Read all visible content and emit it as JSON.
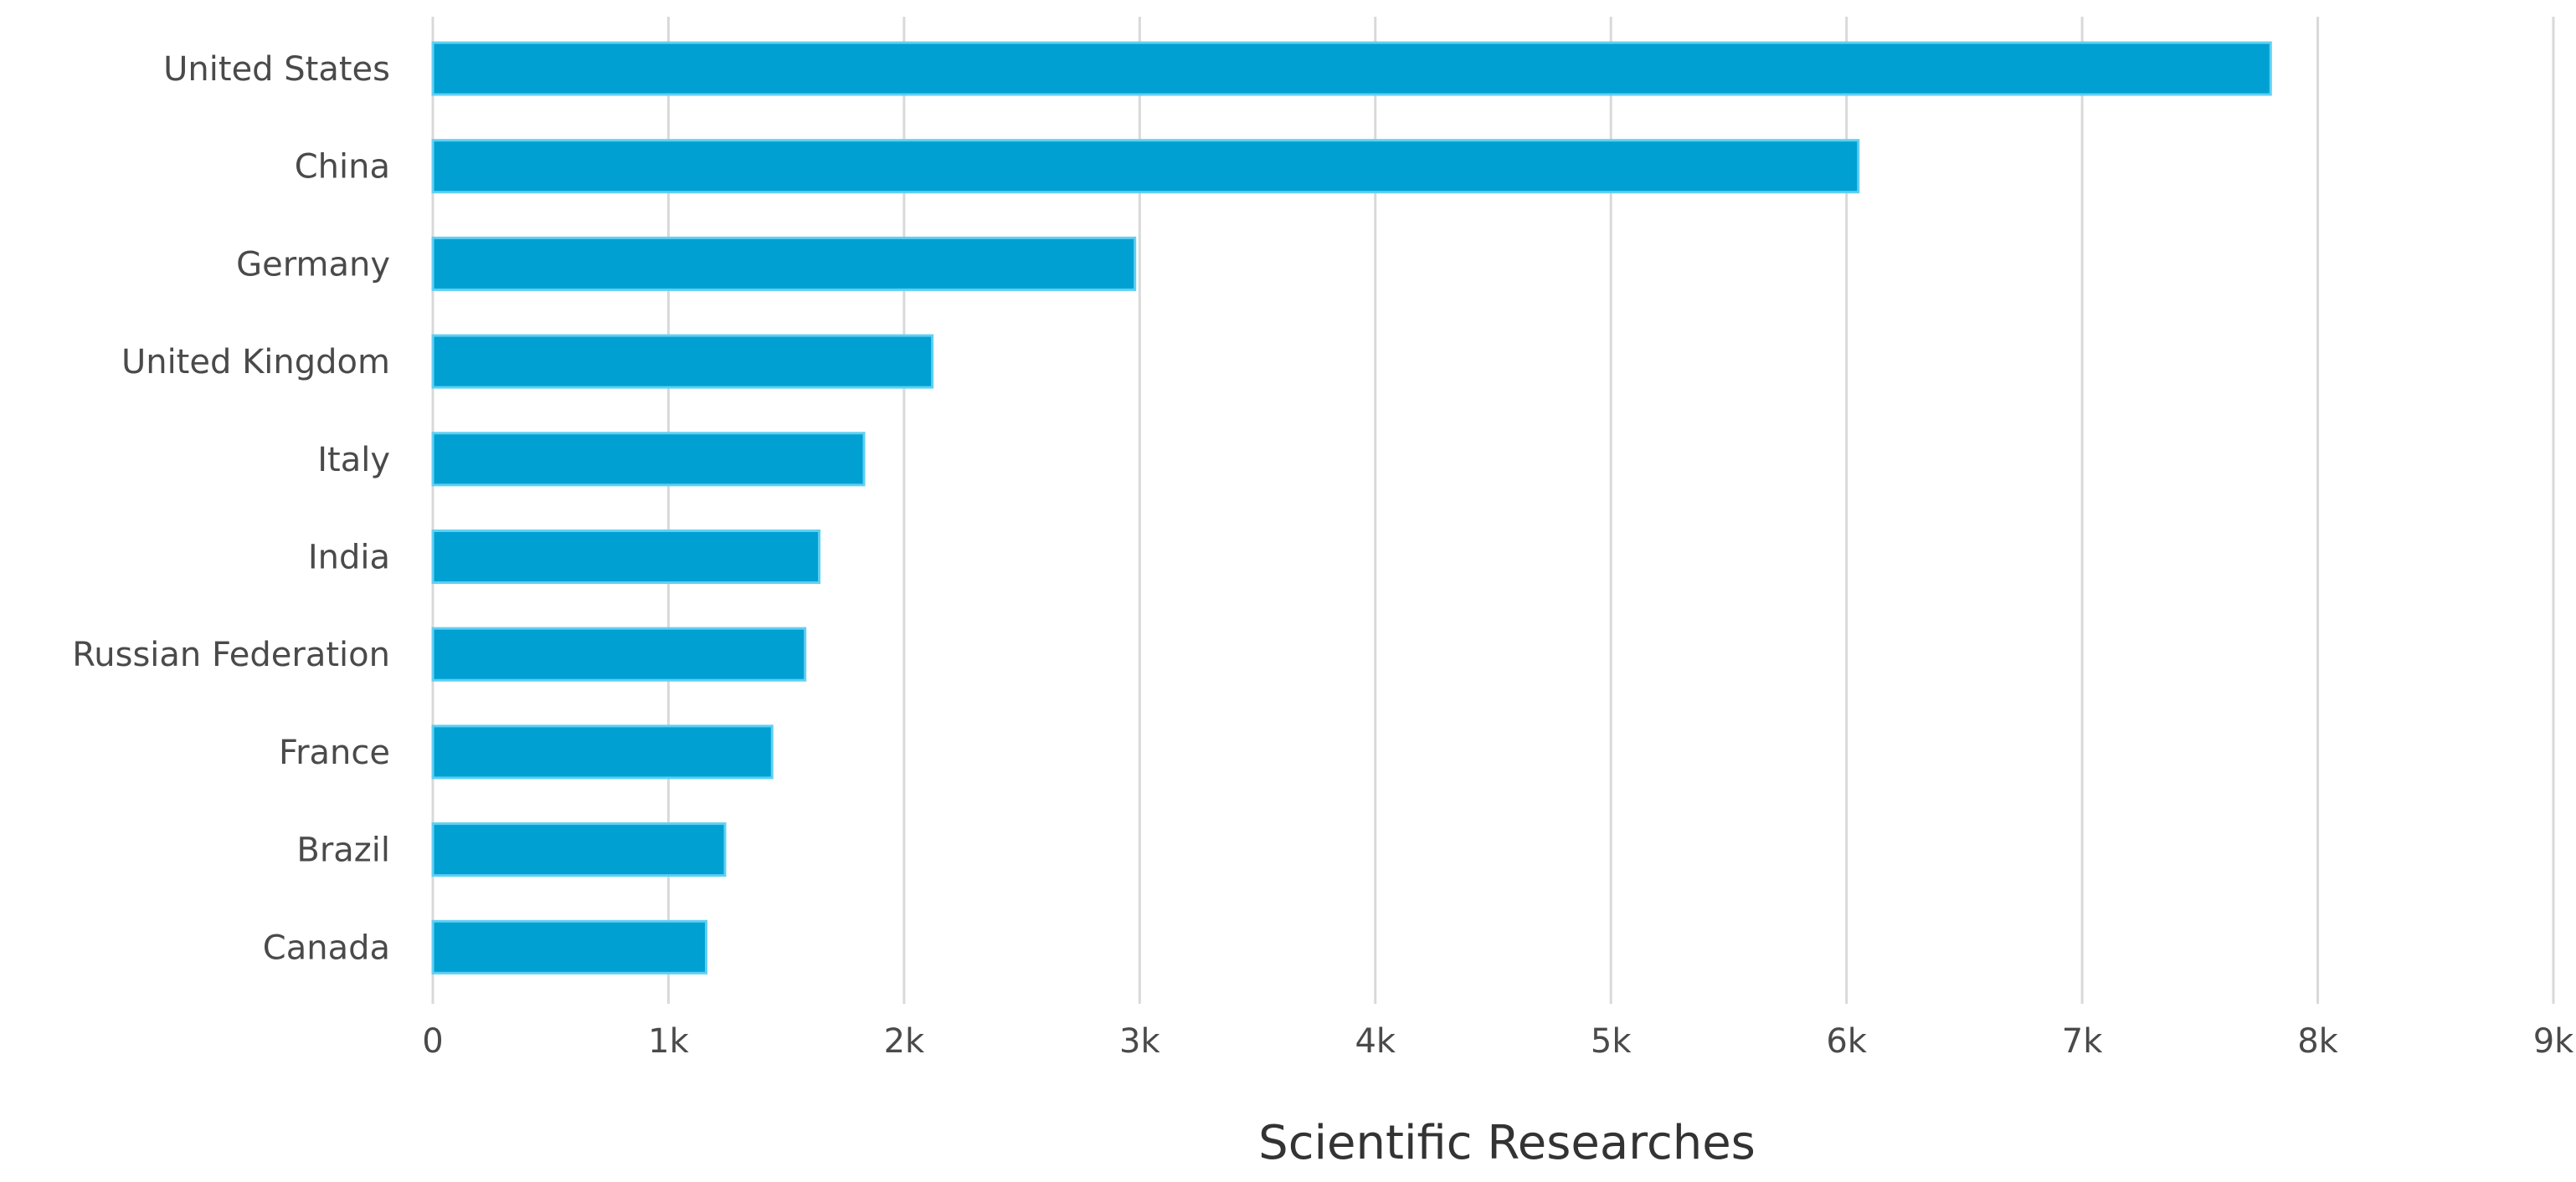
{
  "chart_data": {
    "type": "bar",
    "orientation": "horizontal",
    "categories": [
      "United States",
      "China",
      "Germany",
      "United Kingdom",
      "Italy",
      "India",
      "Russian Federation",
      "France",
      "Brazil",
      "Canada"
    ],
    "values": [
      7800,
      6050,
      2980,
      2120,
      1830,
      1640,
      1580,
      1440,
      1240,
      1160
    ],
    "x_ticks": [
      0,
      1000,
      2000,
      3000,
      4000,
      5000,
      6000,
      7000,
      8000,
      9000
    ],
    "x_tick_labels": [
      "0",
      "1k",
      "2k",
      "3k",
      "4k",
      "5k",
      "6k",
      "7k",
      "8k",
      "9k"
    ],
    "xlabel": "Scientific Researches",
    "xlim": [
      0,
      9000
    ],
    "grid": true,
    "bar_color": "#00a0d2"
  }
}
